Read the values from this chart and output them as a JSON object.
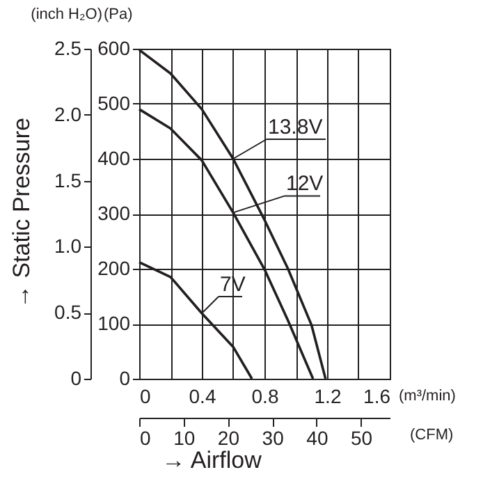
{
  "chart_data": {
    "type": "line",
    "xlabel": "(m³/min)",
    "ylabel": "(Pa)",
    "y2label": "(inch H₂O)",
    "x2label": "(CFM)",
    "annotations": [
      "→ Static Pressure",
      "→ Airflow"
    ],
    "xlim": [
      0,
      1.6
    ],
    "xticks": [
      0,
      {
        "value": 0.2,
        "label": null
      },
      0.4,
      {
        "value": 0.6,
        "label": null
      },
      0.8,
      {
        "value": 1.0,
        "label": null
      },
      1.2,
      {
        "value": 1.4,
        "label": null
      },
      1.6
    ],
    "x2lim": [
      0,
      56.5
    ],
    "x2ticks": [
      0,
      10,
      20,
      30,
      40,
      50
    ],
    "ylim": [
      0,
      600
    ],
    "yticks": [
      0,
      100,
      200,
      300,
      400,
      500,
      600
    ],
    "y2lim": [
      0,
      2.5
    ],
    "y2ticks": [
      0,
      0.5,
      {
        "value": 1,
        "label": "1.0"
      },
      1.5,
      {
        "value": 2,
        "label": "2.0"
      },
      2.5
    ],
    "grid": true,
    "legend": false,
    "marker": "none",
    "line_style": "solid",
    "series": [
      {
        "name": "13.8V",
        "color": "#231f20",
        "x": [
          0,
          0.2,
          0.4,
          0.6,
          0.8,
          0.95,
          1.1,
          1.19
        ],
        "values": [
          598,
          555,
          490,
          400,
          289,
          200,
          98,
          0
        ]
      },
      {
        "name": "12V",
        "color": "#231f20",
        "x": [
          0,
          0.2,
          0.4,
          0.6,
          0.8,
          0.95,
          1.11
        ],
        "values": [
          490,
          455,
          397,
          302,
          199,
          106,
          0
        ]
      },
      {
        "name": "7V",
        "color": "#231f20",
        "x": [
          0,
          0.2,
          0.4,
          0.6,
          0.72
        ],
        "values": [
          212,
          185,
          119,
          58,
          0
        ]
      }
    ]
  }
}
